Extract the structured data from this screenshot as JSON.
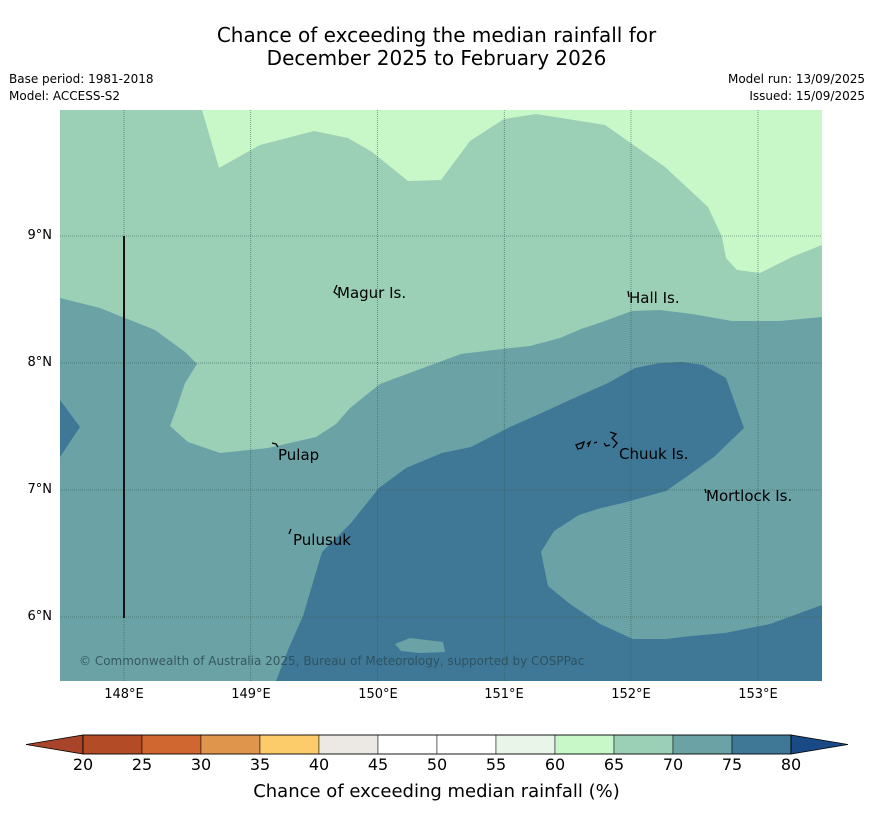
{
  "header": {
    "title_line1": "Chance of exceeding the median rainfall for",
    "title_line2": "December 2025 to February 2026",
    "base_period": "Base period: 1981-2018",
    "model": "Model: ACCESS-S2",
    "model_run": "Model run: 13/09/2025",
    "issued": "Issued: 15/09/2025"
  },
  "map": {
    "lat_labels": [
      "9°N",
      "8°N",
      "7°N",
      "6°N"
    ],
    "lon_labels": [
      "148°E",
      "149°E",
      "150°E",
      "151°E",
      "152°E",
      "153°E"
    ],
    "places": [
      {
        "name": "Magur Is."
      },
      {
        "name": "Hall Is."
      },
      {
        "name": "Pulap"
      },
      {
        "name": "Chuuk Is."
      },
      {
        "name": "Mortlock Is."
      },
      {
        "name": "Pulusuk"
      }
    ],
    "copyright": "© Commonwealth of Australia 2025, Bureau of Meteorology, supported by COSPPac",
    "colors": {
      "c60_65": "#c8f8c8",
      "c65_70": "#9bcfb6",
      "c70_75": "#6ba2a6",
      "c75_80": "#3f7897"
    }
  },
  "colorbar": {
    "title": "Chance of exceeding median rainfall (%)",
    "ticks": [
      "20",
      "25",
      "30",
      "35",
      "40",
      "45",
      "50",
      "55",
      "60",
      "65",
      "70",
      "75",
      "80"
    ],
    "colors": [
      "#a8442a",
      "#b34b27",
      "#d06630",
      "#e0954c",
      "#fccc6a",
      "#ece8e4",
      "#ffffff",
      "#ffffff",
      "#e9f5e9",
      "#c8f8c8",
      "#9bcfb6",
      "#6ba2a6",
      "#3f7897",
      "#1a4a85"
    ]
  }
}
